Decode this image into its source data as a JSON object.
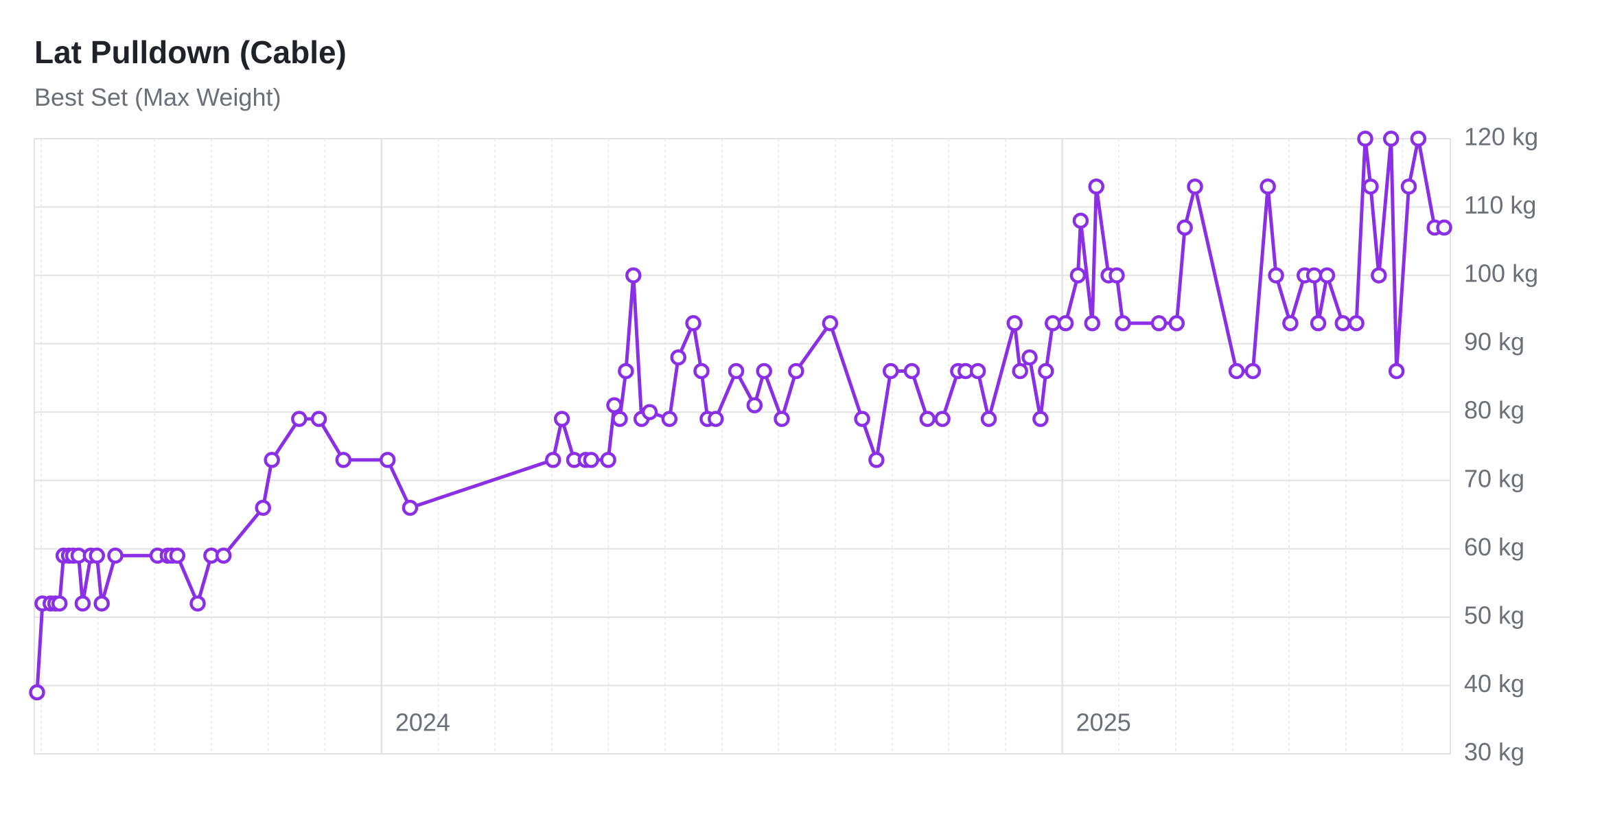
{
  "chart_data": {
    "type": "line",
    "title": "Lat Pulldown (Cable)",
    "subtitle": "Best Set (Max Weight)",
    "color": "#8b2fe6",
    "grid": true,
    "x": [
      2023.494,
      2023.502,
      2023.514,
      2023.521,
      2023.527,
      2023.533,
      2023.541,
      2023.547,
      2023.555,
      2023.561,
      2023.573,
      2023.582,
      2023.589,
      2023.609,
      2023.671,
      2023.686,
      2023.692,
      2023.7,
      2023.73,
      2023.75,
      2023.768,
      2023.826,
      2023.839,
      2023.879,
      2023.908,
      2023.944,
      2024.009,
      2024.042,
      2024.252,
      2024.265,
      2024.283,
      2024.3,
      2024.308,
      2024.333,
      2024.342,
      2024.35,
      2024.359,
      2024.37,
      2024.382,
      2024.394,
      2024.423,
      2024.436,
      2024.458,
      2024.47,
      2024.479,
      2024.491,
      2024.521,
      2024.548,
      2024.562,
      2024.588,
      2024.609,
      2024.659,
      2024.706,
      2024.727,
      2024.748,
      2024.779,
      2024.802,
      2024.824,
      2024.847,
      2024.858,
      2024.876,
      2024.892,
      2024.93,
      2024.938,
      2024.952,
      2024.968,
      2024.976,
      2024.986,
      2025.005,
      2025.023,
      2025.027,
      2025.044,
      2025.05,
      2025.068,
      2025.08,
      2025.089,
      2025.142,
      2025.168,
      2025.18,
      2025.195,
      2025.256,
      2025.28,
      2025.302,
      2025.314,
      2025.335,
      2025.356,
      2025.37,
      2025.376,
      2025.389,
      2025.412,
      2025.432,
      2025.445,
      2025.453,
      2025.465,
      2025.483,
      2025.491,
      2025.509,
      2025.523,
      2025.547,
      2025.561
    ],
    "values": [
      39,
      52,
      52,
      52,
      52,
      59,
      59,
      59,
      59,
      52,
      59,
      59,
      52,
      59,
      59,
      59,
      59,
      59,
      52,
      59,
      59,
      66,
      73,
      79,
      79,
      73,
      73,
      66,
      73,
      79,
      73,
      73,
      73,
      73,
      81,
      79,
      86,
      100,
      79,
      80,
      79,
      88,
      93,
      86,
      79,
      79,
      86,
      81,
      86,
      79,
      86,
      93,
      79,
      73,
      86,
      86,
      79,
      79,
      86,
      86,
      86,
      79,
      93,
      86,
      88,
      79,
      86,
      93,
      93,
      100,
      108,
      93,
      113,
      100,
      100,
      93,
      93,
      93,
      107,
      113,
      86,
      86,
      113,
      100,
      93,
      100,
      100,
      93,
      100,
      93,
      93,
      120,
      113,
      100,
      120,
      86,
      113,
      120,
      107,
      107
    ],
    "xlim": [
      2023.49,
      2025.57
    ],
    "xticks": [
      2024,
      2025
    ],
    "ylim": [
      30,
      120
    ],
    "yticks": [
      {
        "value": 30,
        "label": "30 kg"
      },
      {
        "value": 40,
        "label": "40 kg"
      },
      {
        "value": 50,
        "label": "50 kg"
      },
      {
        "value": 60,
        "label": "60 kg"
      },
      {
        "value": 70,
        "label": "70 kg"
      },
      {
        "value": 80,
        "label": "80 kg"
      },
      {
        "value": 90,
        "label": "90 kg"
      },
      {
        "value": 100,
        "label": "100 kg"
      },
      {
        "value": 110,
        "label": "110 kg"
      },
      {
        "value": 120,
        "label": "120 kg"
      }
    ]
  }
}
